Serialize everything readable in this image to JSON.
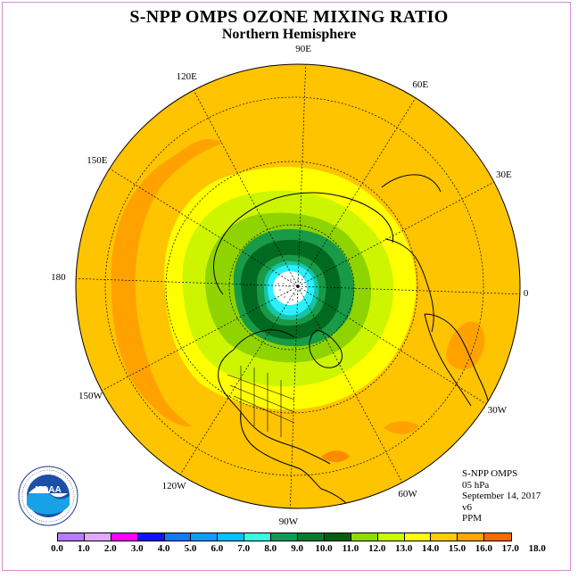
{
  "title": "S-NPP OMPS OZONE MIXING RATIO",
  "subtitle": "Northern Hemisphere",
  "longitude_labels": [
    {
      "text": "90E",
      "angle": 90
    },
    {
      "text": "120E",
      "angle": 120
    },
    {
      "text": "60E",
      "angle": 60
    },
    {
      "text": "150E",
      "angle": 150
    },
    {
      "text": "30E",
      "angle": 30
    },
    {
      "text": "180",
      "angle": 180
    },
    {
      "text": "0",
      "angle": 0
    },
    {
      "text": "150W",
      "angle": 210
    },
    {
      "text": "30W",
      "angle": 330
    },
    {
      "text": "120W",
      "angle": 240
    },
    {
      "text": "60W",
      "angle": 300
    },
    {
      "text": "90W",
      "angle": 270
    }
  ],
  "info": {
    "instrument": "S-NPP OMPS",
    "level": "05 hPa",
    "date": "September 14, 2017",
    "version": "v6",
    "units": "PPM"
  },
  "colorbar": {
    "ticks": [
      "0.0",
      "1.0",
      "2.0",
      "3.0",
      "4.0",
      "5.0",
      "6.0",
      "7.0",
      "8.0",
      "9.0",
      "10.0",
      "11.0",
      "12.0",
      "13.0",
      "14.0",
      "15.0",
      "16.0",
      "17.0",
      "18.0"
    ],
    "colors": [
      "#b57cff",
      "#e2a8ff",
      "#ff00ff",
      "#1212ff",
      "#1479ff",
      "#129bff",
      "#00c2ff",
      "#33ffe0",
      "#0f9a57",
      "#0a7a2c",
      "#00600f",
      "#8edc00",
      "#c8ff00",
      "#ffff00",
      "#ffcc00",
      "#ffa500",
      "#ff6a00",
      "#ff0000",
      "#7a4a2a"
    ]
  },
  "map_colors": {
    "outer": "#ffc400",
    "high": "#ffa200",
    "yellow": "#ffff00",
    "lime": "#cdf500",
    "green_light": "#8fd400",
    "green_mid": "#199a47",
    "green_dark": "#006a20",
    "teal": "#16c5a8",
    "cyan": "#2cf0ff",
    "white_center": "#ffffff",
    "coast": "#000000"
  },
  "logo": {
    "text": "NOAA",
    "ring_text": "NATIONAL OCEANIC AND ATMOSPHERIC ADMINISTRATION"
  }
}
